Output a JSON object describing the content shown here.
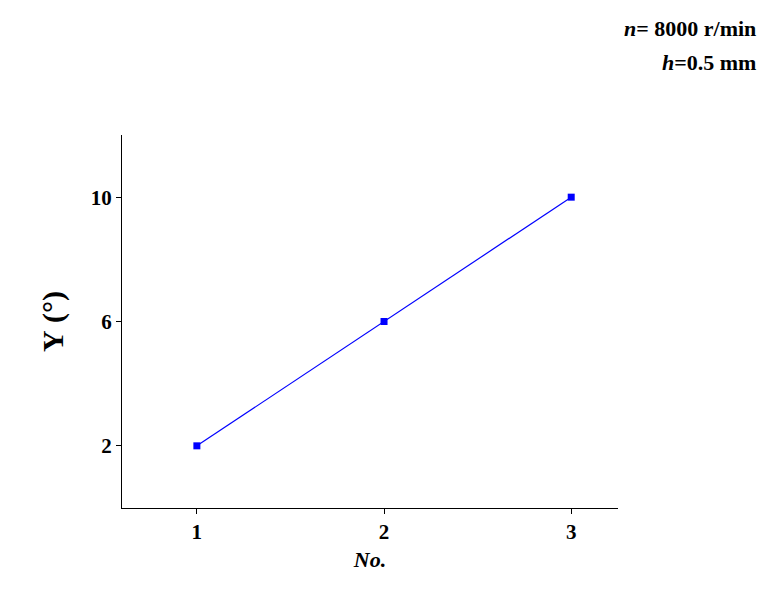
{
  "chart_data": {
    "type": "line",
    "x_label": "No.",
    "y_label": "Υ (°)",
    "annotations": [
      "n= 8000 r/min",
      "h=0.5 mm"
    ],
    "x": [
      1,
      2,
      3
    ],
    "values": [
      2,
      6,
      10
    ],
    "color": "#0000ff",
    "marker": "square",
    "line_style": "solid",
    "xlim": [
      0.6,
      3.25
    ],
    "xticks": [
      1,
      2,
      3
    ],
    "ylim": [
      0,
      12
    ],
    "yticks": [
      2,
      6,
      10
    ],
    "grid": false
  }
}
